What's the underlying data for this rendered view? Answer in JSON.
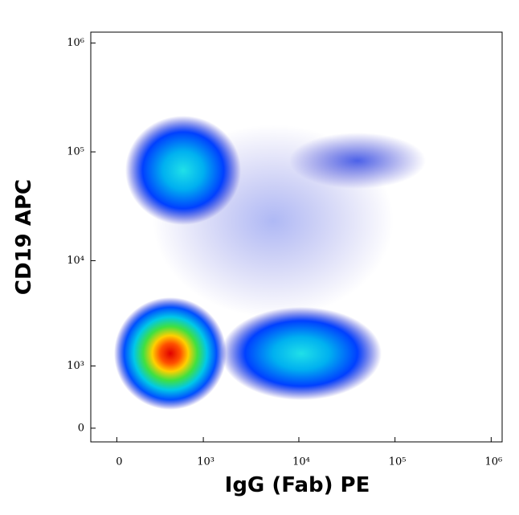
{
  "chart_data": {
    "type": "density",
    "x_label": "IgG (Fab) PE",
    "y_label": "CD19 APC",
    "xscale": "biexponential",
    "yscale": "biexponential",
    "xlim": [
      -170,
      1300000
    ],
    "ylim": [
      -170,
      1260000
    ],
    "xticks": [
      0,
      {
        "value": 1000,
        "label": "10³"
      },
      {
        "value": 10000,
        "label": "10⁴"
      },
      {
        "value": 100000,
        "label": "10⁵"
      },
      {
        "value": 1000000,
        "label": "10⁶"
      }
    ],
    "yticks": [
      0,
      {
        "value": 1000,
        "label": "10³"
      },
      {
        "value": 10000,
        "label": "10⁴"
      },
      {
        "value": 100000,
        "label": "10⁵"
      },
      {
        "value": 1000000,
        "label": "10⁶"
      }
    ]
  }
}
